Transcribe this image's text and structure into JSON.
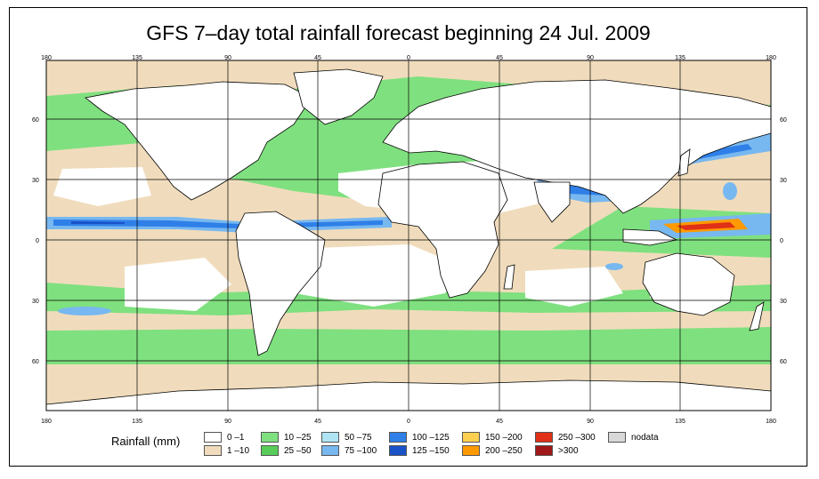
{
  "title": "GFS 7–day total rainfall forecast beginning 24 Jul. 2009",
  "longitude_ticks": [
    "180",
    "135",
    "90",
    "45",
    "0",
    "45",
    "90",
    "135",
    "180"
  ],
  "latitude_ticks": [
    "60",
    "30",
    "0",
    "30",
    "60"
  ],
  "legend": {
    "title": "Rainfall (mm)",
    "items": [
      {
        "label": "0 –1",
        "color": "#ffffff"
      },
      {
        "label": "1 –10",
        "color": "#f0dcbc"
      },
      {
        "label": "10 –25",
        "color": "#7fe07f"
      },
      {
        "label": "25 –50",
        "color": "#58cc58"
      },
      {
        "label": "50 –75",
        "color": "#b0e4f4"
      },
      {
        "label": "75 –100",
        "color": "#78b8f0"
      },
      {
        "label": "100 –125",
        "color": "#2f7fe8"
      },
      {
        "label": "125 –150",
        "color": "#1a52c8"
      },
      {
        "label": "150 –200",
        "color": "#ffd050"
      },
      {
        "label": "200 –250",
        "color": "#ff9a00"
      },
      {
        "label": "250 –300",
        "color": "#e03018"
      },
      {
        "label": ">300",
        "color": "#a01818"
      },
      {
        "label": "nodata",
        "color": "#d8d8d8"
      }
    ]
  },
  "colors": {
    "land_dry": "#ffffff",
    "light_rain": "#f0dcbc",
    "moderate_rain": "#7fe07f",
    "heavy_rain": "#2f7fe8",
    "extreme_rain": "#e03018",
    "coastline": "#000000",
    "grid": "#000000"
  }
}
